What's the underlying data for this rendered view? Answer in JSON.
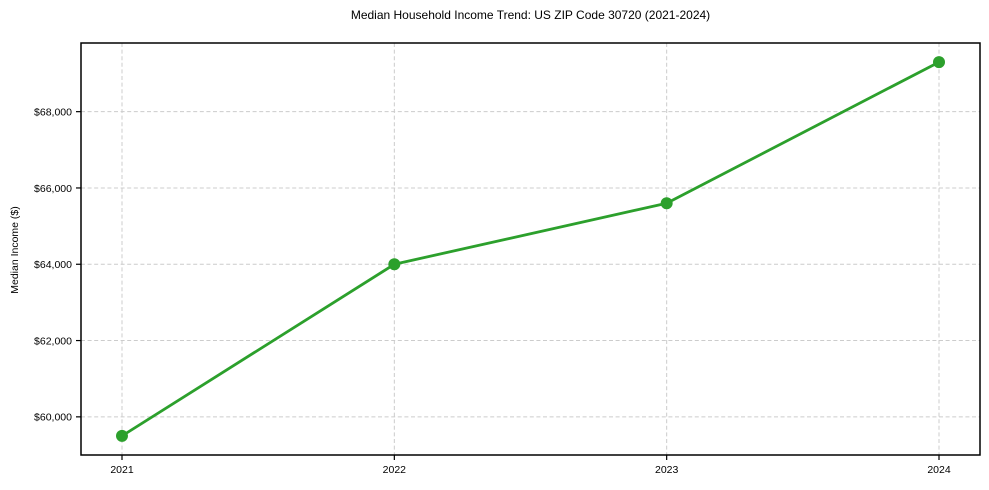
{
  "chart_data": {
    "type": "line",
    "title": "Median Household Income Trend: US ZIP Code 30720 (2021-2024)",
    "xlabel": "",
    "ylabel": "Median Income ($)",
    "x": [
      2021,
      2022,
      2023,
      2024
    ],
    "x_tick_labels": [
      "2021",
      "2022",
      "2023",
      "2024"
    ],
    "series": [
      {
        "name": "Median Household Income",
        "values": [
          59500,
          64000,
          65600,
          69300
        ]
      }
    ],
    "y_ticks": [
      60000,
      62000,
      64000,
      66000,
      68000
    ],
    "y_tick_labels": [
      "$60,000",
      "$62,000",
      "$64,000",
      "$66,000",
      "$68,000"
    ],
    "ylim": [
      59000,
      69800
    ],
    "grid": "dashed both directions",
    "legend_position": "none",
    "line_color": "#2ca02c",
    "marker": "circle",
    "grid_color": "#cccccc",
    "axis_color": "#000000",
    "background_color": "#ffffff"
  }
}
